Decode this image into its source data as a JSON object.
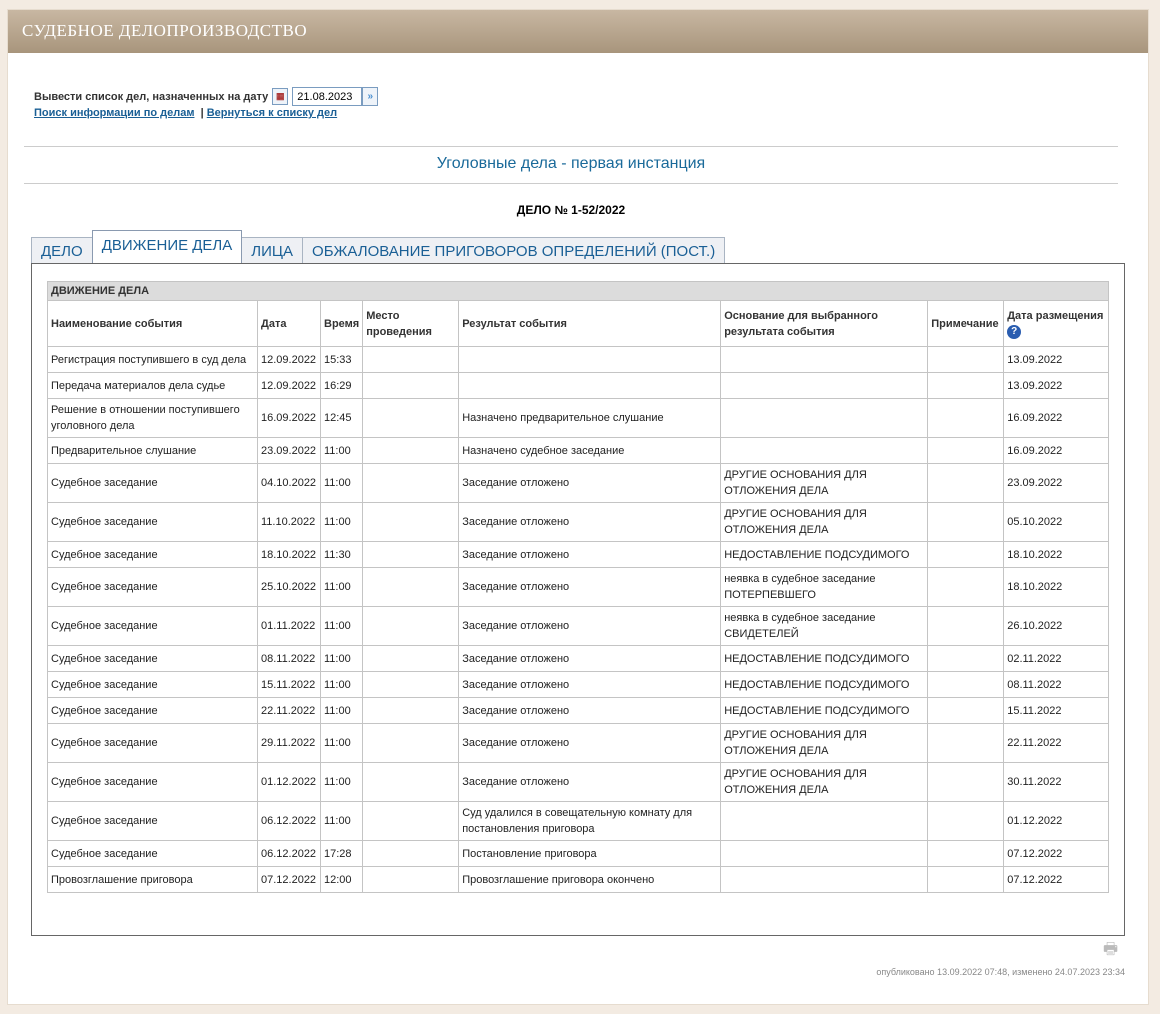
{
  "header": {
    "title": "СУДЕБНОЕ ДЕЛОПРОИЗВОДСТВО"
  },
  "datebar": {
    "label": "Вывести список дел, назначенных на дату",
    "date": "21.08.2023",
    "calendar_icon": "calendar-icon",
    "go_icon": "go-icon"
  },
  "links": {
    "search": "Поиск информации по делам",
    "separator": "|",
    "back": "Вернуться к списку дел"
  },
  "subtitle": "Уголовные дела - первая инстанция",
  "case_title": "ДЕЛО № 1-52/2022",
  "tabs": [
    {
      "label": "ДЕЛО"
    },
    {
      "label": "ДВИЖЕНИЕ ДЕЛА",
      "active": true
    },
    {
      "label": "ЛИЦА"
    },
    {
      "label": "ОБЖАЛОВАНИЕ ПРИГОВОРОВ ОПРЕДЕЛЕНИЙ (ПОСТ.)"
    }
  ],
  "table": {
    "caption": "ДВИЖЕНИЕ ДЕЛА",
    "headers": [
      "Наименование события",
      "Дата",
      "Время",
      "Место проведения",
      "Результат события",
      "Основание для выбранного результата события",
      "Примечание",
      "Дата размещения"
    ],
    "rows": [
      [
        "Регистрация поступившего в суд дела",
        "12.09.2022",
        "15:33",
        "",
        "",
        "",
        "",
        "13.09.2022"
      ],
      [
        "Передача материалов дела судье",
        "12.09.2022",
        "16:29",
        "",
        "",
        "",
        "",
        "13.09.2022"
      ],
      [
        "Решение в отношении поступившего уголовного дела",
        "16.09.2022",
        "12:45",
        "",
        "Назначено предварительное слушание",
        "",
        "",
        "16.09.2022"
      ],
      [
        "Предварительное слушание",
        "23.09.2022",
        "11:00",
        "",
        "Назначено судебное заседание",
        "",
        "",
        "16.09.2022"
      ],
      [
        "Судебное заседание",
        "04.10.2022",
        "11:00",
        "",
        "Заседание отложено",
        "ДРУГИЕ ОСНОВАНИЯ ДЛЯ ОТЛОЖЕНИЯ ДЕЛА",
        "",
        "23.09.2022"
      ],
      [
        "Судебное заседание",
        "11.10.2022",
        "11:00",
        "",
        "Заседание отложено",
        "ДРУГИЕ ОСНОВАНИЯ ДЛЯ ОТЛОЖЕНИЯ ДЕЛА",
        "",
        "05.10.2022"
      ],
      [
        "Судебное заседание",
        "18.10.2022",
        "11:30",
        "",
        "Заседание отложено",
        "НЕДОСТАВЛЕНИЕ ПОДСУДИМОГО",
        "",
        "18.10.2022"
      ],
      [
        "Судебное заседание",
        "25.10.2022",
        "11:00",
        "",
        "Заседание отложено",
        "неявка в судебное заседание ПОТЕРПЕВШЕГО",
        "",
        "18.10.2022"
      ],
      [
        "Судебное заседание",
        "01.11.2022",
        "11:00",
        "",
        "Заседание отложено",
        "неявка в судебное заседание СВИДЕТЕЛЕЙ",
        "",
        "26.10.2022"
      ],
      [
        "Судебное заседание",
        "08.11.2022",
        "11:00",
        "",
        "Заседание отложено",
        "НЕДОСТАВЛЕНИЕ ПОДСУДИМОГО",
        "",
        "02.11.2022"
      ],
      [
        "Судебное заседание",
        "15.11.2022",
        "11:00",
        "",
        "Заседание отложено",
        "НЕДОСТАВЛЕНИЕ ПОДСУДИМОГО",
        "",
        "08.11.2022"
      ],
      [
        "Судебное заседание",
        "22.11.2022",
        "11:00",
        "",
        "Заседание отложено",
        "НЕДОСТАВЛЕНИЕ ПОДСУДИМОГО",
        "",
        "15.11.2022"
      ],
      [
        "Судебное заседание",
        "29.11.2022",
        "11:00",
        "",
        "Заседание отложено",
        "ДРУГИЕ ОСНОВАНИЯ ДЛЯ ОТЛОЖЕНИЯ ДЕЛА",
        "",
        "22.11.2022"
      ],
      [
        "Судебное заседание",
        "01.12.2022",
        "11:00",
        "",
        "Заседание отложено",
        "ДРУГИЕ ОСНОВАНИЯ ДЛЯ ОТЛОЖЕНИЯ ДЕЛА",
        "",
        "30.11.2022"
      ],
      [
        "Судебное заседание",
        "06.12.2022",
        "11:00",
        "",
        "Суд удалился в совещательную комнату для постановления приговора",
        "",
        "",
        "01.12.2022"
      ],
      [
        "Судебное заседание",
        "06.12.2022",
        "17:28",
        "",
        "Постановление приговора",
        "",
        "",
        "07.12.2022"
      ],
      [
        "Провозглашение приговора",
        "07.12.2022",
        "12:00",
        "",
        "Провозглашение приговора окончено",
        "",
        "",
        "07.12.2022"
      ]
    ]
  },
  "footer": {
    "text": "опубликовано 13.09.2022 07:48, изменено 24.07.2023 23:34",
    "print_icon": "print-icon"
  }
}
